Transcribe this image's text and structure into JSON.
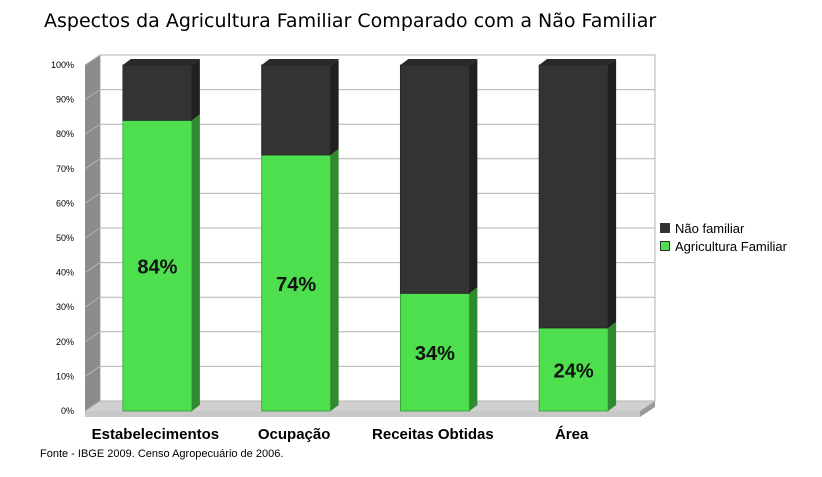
{
  "chart_data": {
    "type": "bar",
    "stacked": true,
    "percent_stacked": true,
    "style": "3d",
    "title": "Aspectos da Agricultura Familiar Comparado com a Não Familiar",
    "categories": [
      "Estabelecimentos",
      "Ocupação",
      "Receitas Obtidas",
      "Área"
    ],
    "series": [
      {
        "name": "Agricultura Familiar",
        "values": [
          84,
          74,
          34,
          24
        ],
        "labels": [
          "84%",
          "74%",
          "34%",
          "24%"
        ],
        "color": "#4ddf4d"
      },
      {
        "name": "Não familiar",
        "values": [
          16,
          26,
          66,
          76
        ],
        "color": "#333333"
      }
    ],
    "y_ticks": [
      "0%",
      "10%",
      "20%",
      "30%",
      "40%",
      "50%",
      "60%",
      "70%",
      "80%",
      "90%",
      "100%"
    ],
    "ylim": [
      0,
      100
    ],
    "grid": true,
    "legend_position": "right"
  },
  "source_note": "Fonte - IBGE 2009. Censo Agropecuário de 2006."
}
